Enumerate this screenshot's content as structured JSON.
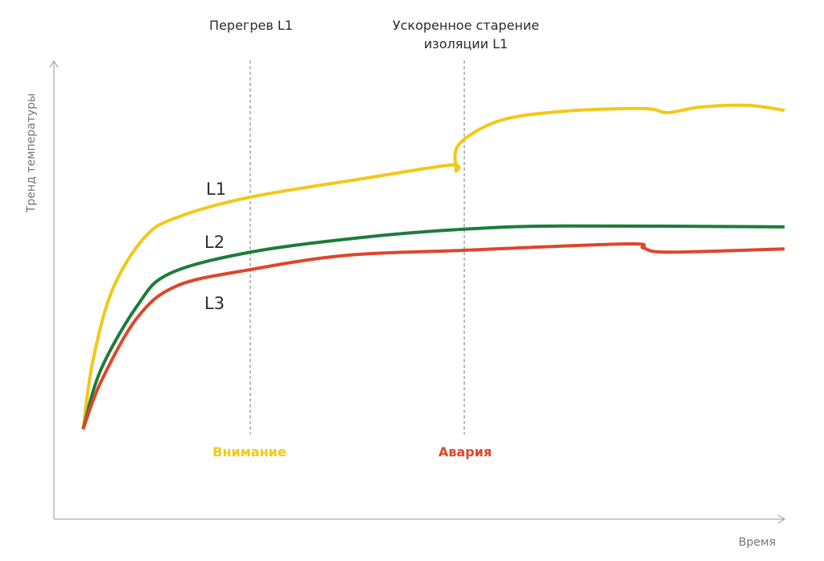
{
  "chart_data": {
    "type": "line",
    "title": "",
    "xlabel": "Время",
    "ylabel": "Тренд температуры",
    "xlim": [
      0,
      100
    ],
    "ylim": [
      0,
      100
    ],
    "grid": false,
    "series": [
      {
        "name": "L1",
        "color": "#f2c818",
        "x": [
          4,
          5.3,
          8,
          12.4,
          16.9,
          26.9,
          42.2,
          54.3,
          55,
          55.4,
          60.9,
          69.7,
          80.7,
          84,
          88.4,
          95,
          100
        ],
        "y": [
          19.6,
          34.2,
          50,
          61.4,
          65.8,
          70.2,
          74.2,
          77.2,
          76,
          81.6,
          86.8,
          88.9,
          89.5,
          88.6,
          89.8,
          90.2,
          89.1
        ]
      },
      {
        "name": "L2",
        "color": "#1b7d3b",
        "x": [
          4,
          6.4,
          11.4,
          15.8,
          26.9,
          42.2,
          56,
          69.7,
          100
        ],
        "y": [
          19.6,
          32.5,
          46.5,
          53.5,
          58.2,
          61.4,
          63.2,
          63.9,
          63.7
        ]
      },
      {
        "name": "L3",
        "color": "#e0452b",
        "x": [
          4,
          6.4,
          11.4,
          16.9,
          26.9,
          40,
          56,
          78.5,
          80.7,
          84,
          100
        ],
        "y": [
          19.6,
          29.8,
          43.9,
          50.9,
          54.4,
          57.5,
          58.6,
          60,
          59.1,
          58.2,
          58.9
        ]
      }
    ],
    "annotations": [
      {
        "x": 26.9,
        "top_label": "Перегрев L1",
        "bottom_label": "Внимание",
        "bottom_color": "#f2c818"
      },
      {
        "x": 56,
        "top_label": [
          "Ускоренное старение",
          "изоляции L1"
        ],
        "bottom_label": "Авария",
        "bottom_color": "#e0452b"
      }
    ]
  }
}
